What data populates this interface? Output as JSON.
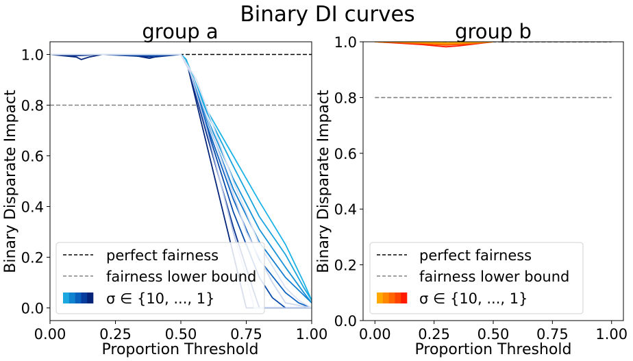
{
  "figure": {
    "suptitle": "Binary DI curves"
  },
  "chart_data": [
    {
      "type": "line",
      "title": "group a",
      "xlabel": "Proportion Threshold",
      "ylabel": "Binary Disparate Impact",
      "xlim": [
        0.0,
        1.0
      ],
      "ylim": [
        -0.05,
        1.05
      ],
      "xticks": [
        "0.00",
        "0.25",
        "0.50",
        "0.75",
        "1.00"
      ],
      "yticks": [
        "0.0",
        "0.2",
        "0.4",
        "0.6",
        "0.8",
        "1.0"
      ],
      "grid": false,
      "legend_position": "lower-left",
      "reference_lines": [
        {
          "name": "perfect fairness",
          "y": 1.0,
          "color": "#000000",
          "dash": true
        },
        {
          "name": "fairness lower bound",
          "y": 0.8,
          "color": "#808080",
          "dash": true
        }
      ],
      "sigma_legend": {
        "label": "σ ∈ {10, ..., 1}",
        "colors": [
          "#1ba7e0",
          "#0f82d0",
          "#0a60bd",
          "#073e9e",
          "#04247a"
        ]
      },
      "series": [
        {
          "color": "#04247a",
          "x": [
            0.0,
            0.1,
            0.12,
            0.15,
            0.2,
            0.3,
            0.38,
            0.4,
            0.45,
            0.5,
            0.52,
            0.75,
            0.76,
            1.0
          ],
          "y": [
            1.0,
            0.99,
            0.98,
            0.99,
            1.0,
            1.0,
            0.985,
            0.99,
            1.0,
            1.0,
            0.98,
            0.0,
            0.0,
            0.0
          ]
        },
        {
          "color": "#052f8a",
          "x": [
            0.0,
            0.1,
            0.2,
            0.3,
            0.4,
            0.5,
            0.52,
            0.6,
            0.7,
            0.78,
            0.8,
            1.0
          ],
          "y": [
            1.0,
            0.995,
            1.0,
            0.995,
            0.99,
            1.0,
            0.98,
            0.68,
            0.32,
            0.06,
            0.0,
            0.0
          ]
        },
        {
          "color": "#0a4aa8",
          "x": [
            0.0,
            0.2,
            0.4,
            0.5,
            0.52,
            0.6,
            0.7,
            0.8,
            0.85,
            0.9,
            1.0
          ],
          "y": [
            1.0,
            1.0,
            0.995,
            1.0,
            0.98,
            0.71,
            0.38,
            0.12,
            0.04,
            0.0,
            0.0
          ]
        },
        {
          "color": "#0e63c0",
          "x": [
            0.0,
            0.2,
            0.4,
            0.5,
            0.52,
            0.6,
            0.7,
            0.8,
            0.9,
            0.95,
            1.0
          ],
          "y": [
            1.0,
            1.0,
            1.0,
            1.0,
            0.98,
            0.72,
            0.43,
            0.19,
            0.06,
            0.02,
            0.0
          ]
        },
        {
          "color": "#127cd0",
          "x": [
            0.0,
            0.2,
            0.4,
            0.5,
            0.52,
            0.6,
            0.7,
            0.8,
            0.9,
            0.97,
            1.0
          ],
          "y": [
            1.0,
            1.0,
            1.0,
            1.0,
            0.98,
            0.74,
            0.47,
            0.26,
            0.12,
            0.05,
            0.02
          ]
        },
        {
          "color": "#1592d8",
          "x": [
            0.0,
            0.2,
            0.4,
            0.5,
            0.52,
            0.6,
            0.7,
            0.8,
            0.9,
            0.97,
            1.0
          ],
          "y": [
            1.0,
            1.0,
            1.0,
            1.0,
            0.98,
            0.75,
            0.51,
            0.31,
            0.16,
            0.06,
            0.02
          ]
        },
        {
          "color": "#18a4de",
          "x": [
            0.0,
            0.2,
            0.4,
            0.5,
            0.52,
            0.6,
            0.7,
            0.8,
            0.9,
            0.97,
            1.0
          ],
          "y": [
            1.0,
            1.0,
            1.0,
            1.0,
            0.98,
            0.77,
            0.56,
            0.36,
            0.21,
            0.08,
            0.03
          ]
        },
        {
          "color": "#1cb3e6",
          "x": [
            0.0,
            0.2,
            0.4,
            0.5,
            0.52,
            0.6,
            0.7,
            0.8,
            0.9,
            0.97,
            1.0
          ],
          "y": [
            1.0,
            1.0,
            1.0,
            1.0,
            0.98,
            0.78,
            0.6,
            0.42,
            0.25,
            0.1,
            0.03
          ]
        },
        {
          "color": "#b8c7ea",
          "x": [
            0.0,
            0.5,
            0.53,
            0.6,
            0.7,
            0.75,
            0.78,
            1.0
          ],
          "y": [
            1.0,
            1.0,
            0.95,
            0.7,
            0.3,
            0.12,
            0.0,
            0.0
          ]
        },
        {
          "color": "#ccd7ef",
          "x": [
            0.0,
            0.5,
            0.55,
            0.65,
            0.75,
            0.85,
            0.9,
            1.0
          ],
          "y": [
            1.0,
            1.0,
            0.9,
            0.6,
            0.3,
            0.1,
            0.02,
            0.0
          ]
        },
        {
          "color": "#d9e1f2",
          "x": [
            0.0,
            0.5,
            0.56,
            0.7,
            0.8,
            0.9,
            0.95,
            1.0
          ],
          "y": [
            1.0,
            1.0,
            0.9,
            0.5,
            0.25,
            0.08,
            0.03,
            0.0
          ]
        }
      ]
    },
    {
      "type": "line",
      "title": "group b",
      "xlabel": "Proportion Threshold",
      "ylabel": "Binary Disparate Impact",
      "xlim": [
        -0.05,
        1.05
      ],
      "ylim": [
        0.0,
        1.0
      ],
      "xticks": [
        "0.00",
        "0.25",
        "0.50",
        "0.75",
        "1.00"
      ],
      "yticks": [
        "0.0",
        "0.2",
        "0.4",
        "0.6",
        "0.8",
        "1.0"
      ],
      "grid": false,
      "legend_position": "lower-left",
      "reference_lines": [
        {
          "name": "perfect fairness",
          "y": 1.0,
          "color": "#000000",
          "dash": true
        },
        {
          "name": "fairness lower bound",
          "y": 0.8,
          "color": "#808080",
          "dash": true
        }
      ],
      "sigma_legend": {
        "label": "σ ∈ {10, ..., 1}",
        "colors": [
          "#ffaa00",
          "#ff8800",
          "#ff6600",
          "#ff4400",
          "#ff1a00"
        ]
      },
      "series": [
        {
          "color": "#ff1a00",
          "x": [
            0.0,
            0.1,
            0.2,
            0.3,
            0.35,
            0.4,
            0.5
          ],
          "y": [
            1.0,
            0.995,
            0.99,
            0.982,
            0.985,
            0.99,
            1.0
          ]
        },
        {
          "color": "#ff4400",
          "x": [
            0.0,
            0.1,
            0.2,
            0.3,
            0.4,
            0.5
          ],
          "y": [
            1.0,
            0.997,
            0.993,
            0.988,
            0.992,
            1.0
          ]
        },
        {
          "color": "#ff6600",
          "x": [
            0.0,
            0.1,
            0.2,
            0.3,
            0.4,
            0.5
          ],
          "y": [
            1.0,
            0.998,
            0.995,
            0.99,
            0.995,
            1.0
          ]
        },
        {
          "color": "#ff8800",
          "x": [
            0.0,
            0.1,
            0.2,
            0.3,
            0.4,
            0.5
          ],
          "y": [
            1.0,
            0.999,
            0.996,
            0.993,
            0.996,
            1.0
          ]
        },
        {
          "color": "#ffaa00",
          "x": [
            0.0,
            0.1,
            0.2,
            0.3,
            0.4,
            0.5
          ],
          "y": [
            1.0,
            1.0,
            0.998,
            0.996,
            0.998,
            1.0
          ]
        }
      ]
    }
  ]
}
